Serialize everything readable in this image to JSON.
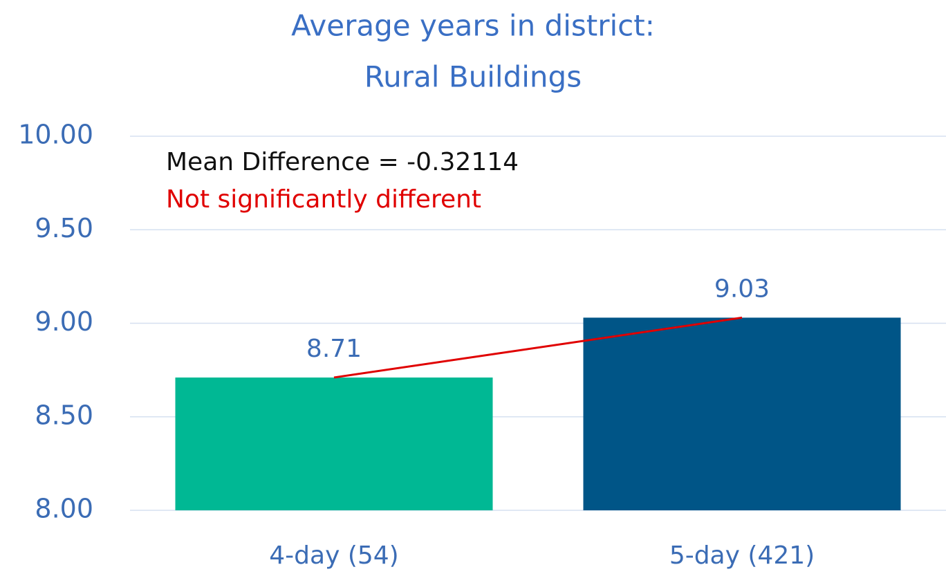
{
  "chart_data": {
    "type": "bar",
    "title": "Average years in district:",
    "subtitle": "Rural Buildings",
    "annotations": [
      "Mean Difference = -0.32114",
      "Not significantly different"
    ],
    "categories": [
      "4-day (54)",
      "5-day (421)"
    ],
    "values": [
      8.71,
      9.03
    ],
    "colors": [
      "#00b894",
      "#005587"
    ],
    "ylim": [
      8,
      10
    ],
    "yticks": [
      {
        "value": 8,
        "label": "8.00"
      },
      {
        "value": 8.5,
        "label": "8.50"
      },
      {
        "value": 9,
        "label": "9.00"
      },
      {
        "value": 9.5,
        "label": "9.50"
      },
      {
        "value": 10,
        "label": "10.00"
      }
    ],
    "grid": true
  }
}
